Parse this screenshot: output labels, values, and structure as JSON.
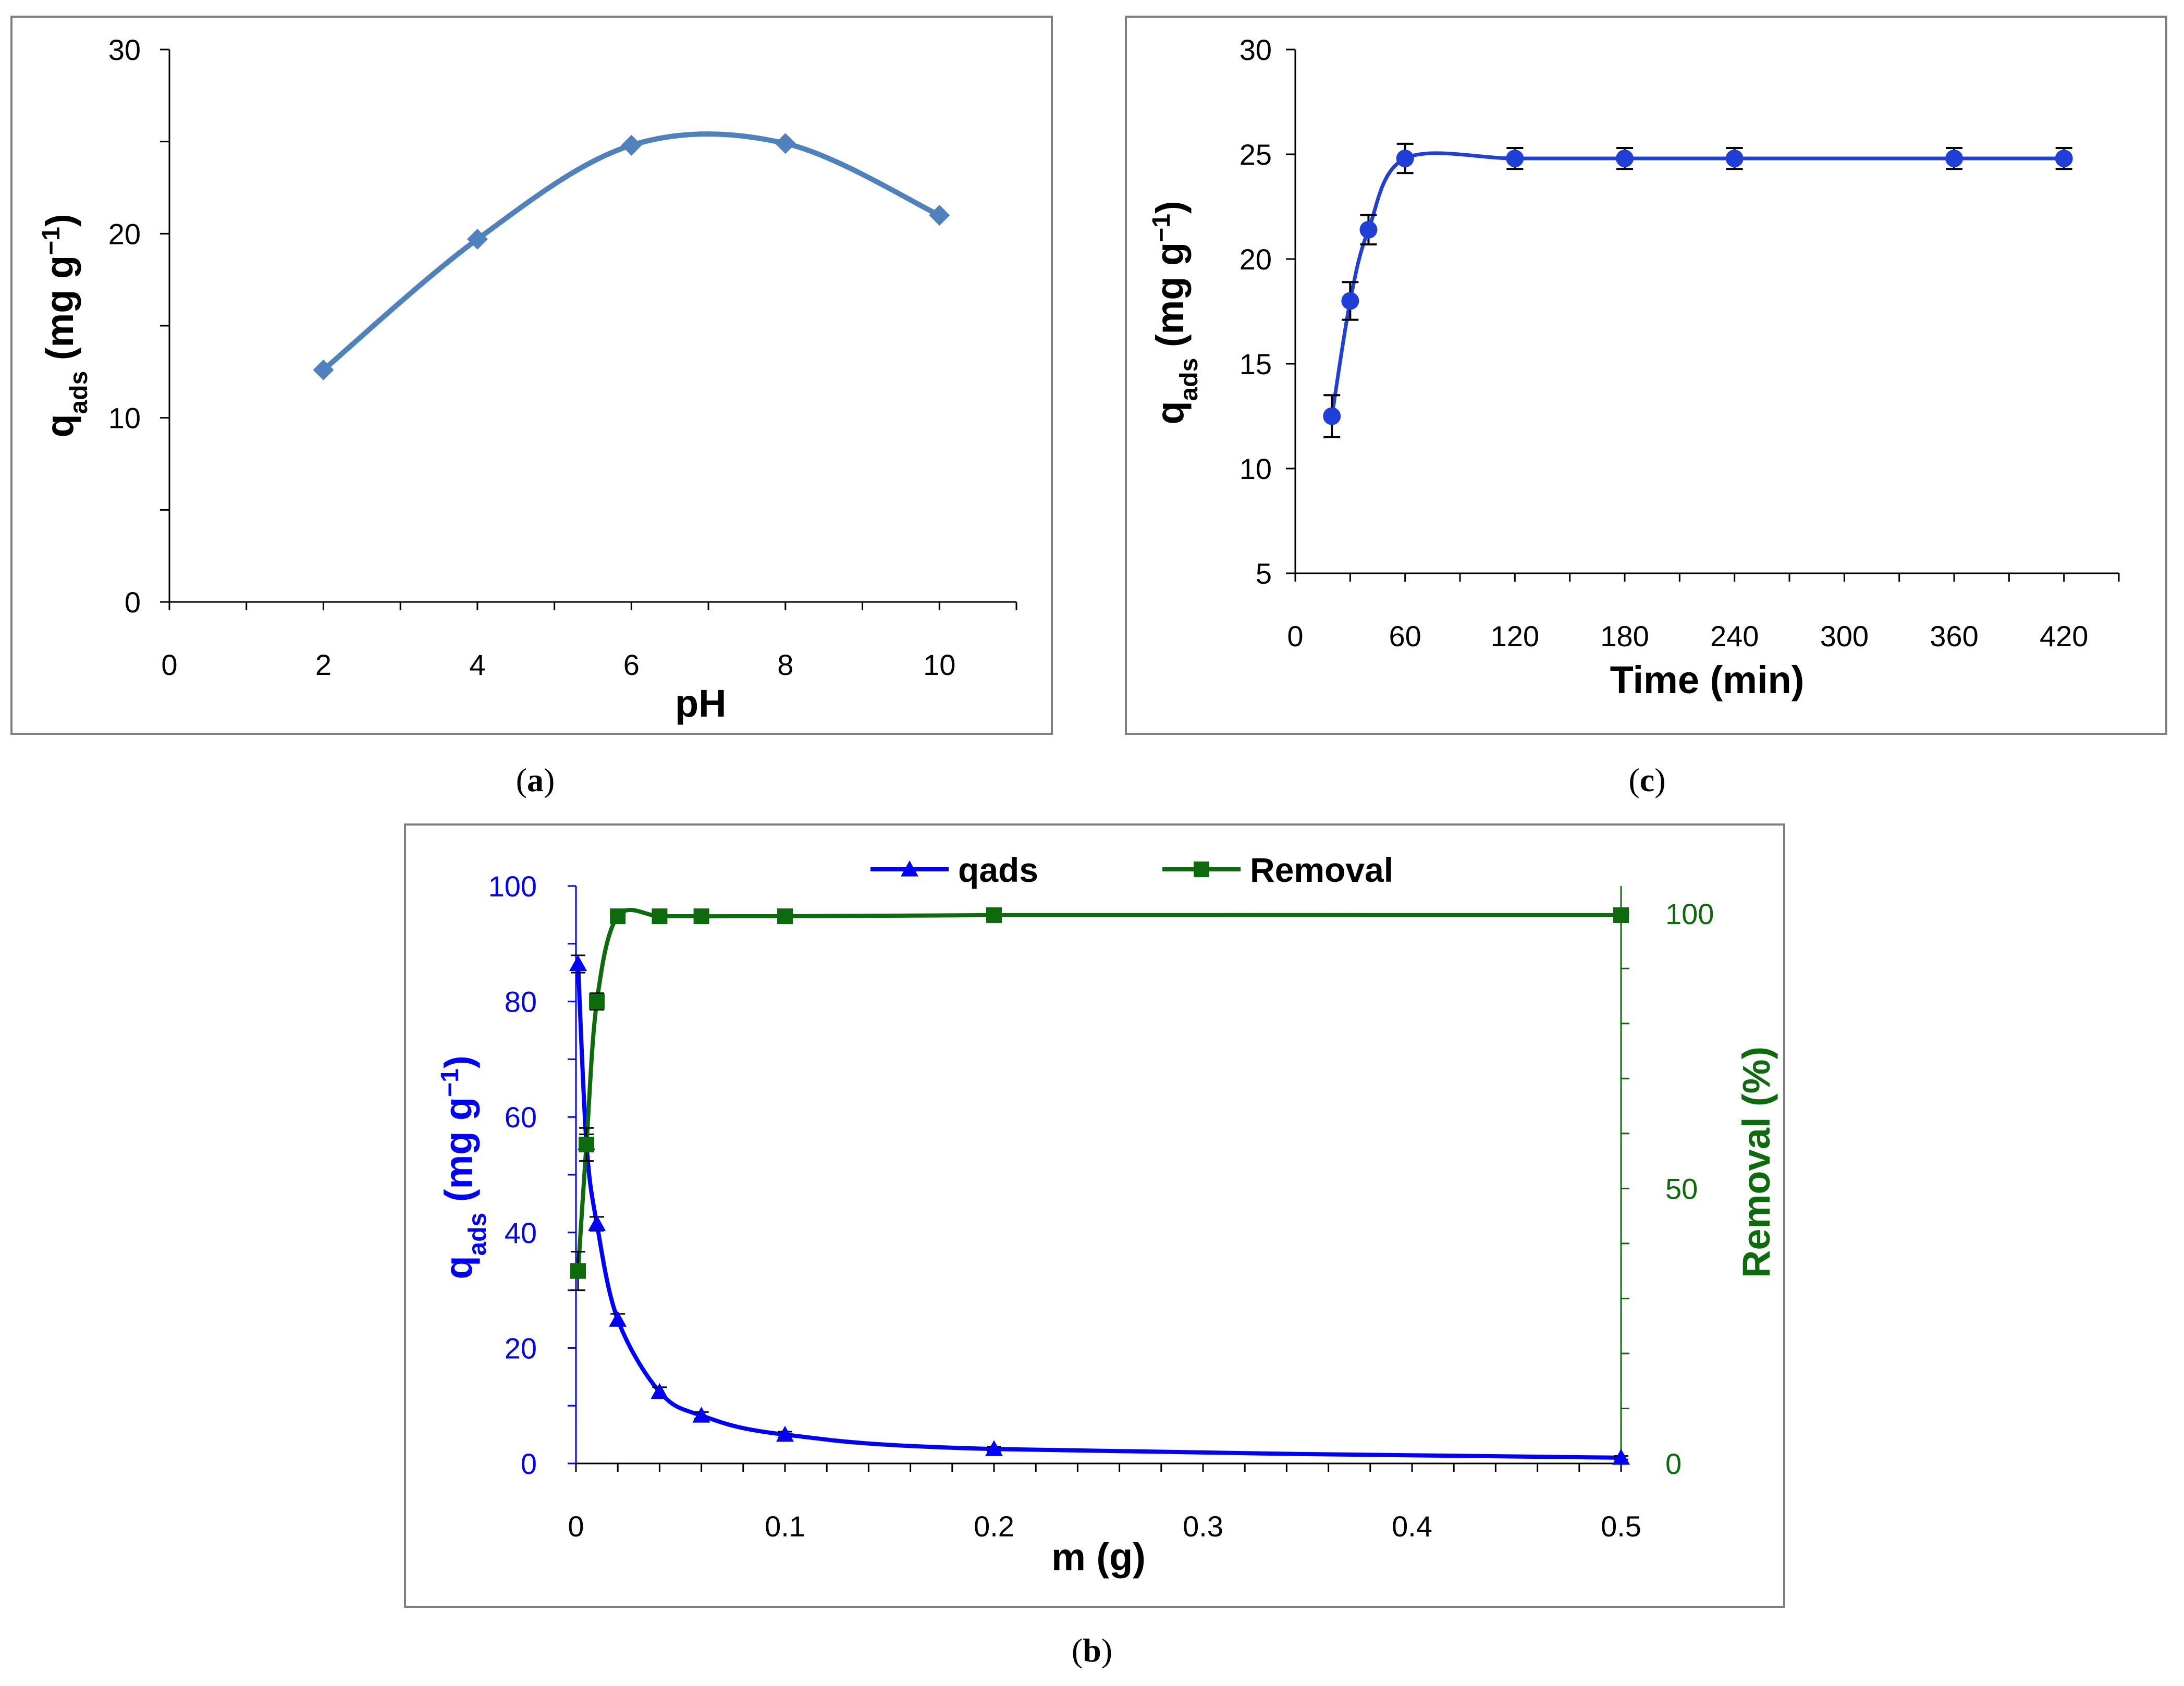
{
  "captions": {
    "a": "a",
    "b": "b",
    "c": "c"
  },
  "chart_data": [
    {
      "id": "a",
      "type": "line",
      "xlabel": "pH",
      "ylabel_main": "q",
      "ylabel_sub": "ads",
      "ylabel_unit": " (mg g",
      "ylabel_sup": "−1",
      "ylabel_close": ")",
      "xlim": [
        0,
        11
      ],
      "ylim": [
        0,
        30
      ],
      "xticks": [
        0,
        2,
        4,
        6,
        8,
        10
      ],
      "yticks": [
        0,
        10,
        20,
        30
      ],
      "series": [
        {
          "name": "qads",
          "color": "#4f81bd",
          "marker": "diamond",
          "x": [
            2,
            4,
            6,
            8,
            10
          ],
          "y": [
            12.6,
            19.7,
            24.8,
            24.9,
            21.0
          ]
        }
      ]
    },
    {
      "id": "c",
      "type": "line",
      "xlabel": "Time (min)",
      "ylabel_main": "q",
      "ylabel_sub": "ads",
      "ylabel_unit": " (mg g",
      "ylabel_sup": "−1",
      "ylabel_close": ")",
      "xlim": [
        0,
        450
      ],
      "ylim": [
        5,
        30
      ],
      "xticks": [
        0,
        60,
        120,
        180,
        240,
        300,
        360,
        420
      ],
      "yticks": [
        5,
        10,
        15,
        20,
        25,
        30
      ],
      "series": [
        {
          "name": "qads",
          "color": "#1f3fd6",
          "marker": "circle",
          "x": [
            20,
            30,
            40,
            60,
            120,
            180,
            240,
            360,
            420
          ],
          "y": [
            12.5,
            18.0,
            21.4,
            24.8,
            24.8,
            24.8,
            24.8,
            24.8,
            24.8
          ],
          "err": [
            1.0,
            0.9,
            0.7,
            0.7,
            0.5,
            0.5,
            0.5,
            0.5,
            0.5
          ]
        }
      ]
    },
    {
      "id": "b",
      "type": "line",
      "xlabel": "m (g)",
      "ylabel_main": "q",
      "ylabel_sub": "ads",
      "ylabel_unit": " (mg g",
      "ylabel_sup": "−1",
      "ylabel_close": ")",
      "y2label": "Removal (%)",
      "xlim": [
        0,
        0.5
      ],
      "ylim": [
        0,
        100
      ],
      "y2lim": [
        0,
        105
      ],
      "xticks": [
        0,
        0.1,
        0.2,
        0.3,
        0.4,
        0.5
      ],
      "xtick_labels": [
        "0",
        "0.1",
        "0.2",
        "0.3",
        "0.4",
        "0.5"
      ],
      "yticks": [
        0,
        20,
        40,
        60,
        80,
        100
      ],
      "y2ticks": [
        0,
        50,
        100
      ],
      "legend_position": "top-center",
      "series": [
        {
          "name": "qads",
          "color": "#0000ff",
          "marker": "triangle",
          "axis": "left",
          "x": [
            0.001,
            0.005,
            0.01,
            0.02,
            0.04,
            0.06,
            0.1,
            0.2,
            0.5
          ],
          "y": [
            86.5,
            55.5,
            41.5,
            24.9,
            12.4,
            8.3,
            5.0,
            2.5,
            1.0
          ],
          "err": [
            1.5,
            1.5,
            1.2,
            1.0,
            0.8,
            0.6,
            0.5,
            0.4,
            0.3
          ]
        },
        {
          "name": "Removal",
          "color": "#0d6b0d",
          "marker": "square",
          "axis": "right",
          "x": [
            0.001,
            0.005,
            0.01,
            0.02,
            0.04,
            0.06,
            0.1,
            0.2,
            0.5
          ],
          "y": [
            35.0,
            58.0,
            84.0,
            99.5,
            99.5,
            99.5,
            99.5,
            99.7,
            99.7
          ],
          "err": [
            3.5,
            3.0,
            1.5,
            1.0,
            1.0,
            1.0,
            1.0,
            1.0,
            1.0
          ]
        }
      ]
    }
  ]
}
